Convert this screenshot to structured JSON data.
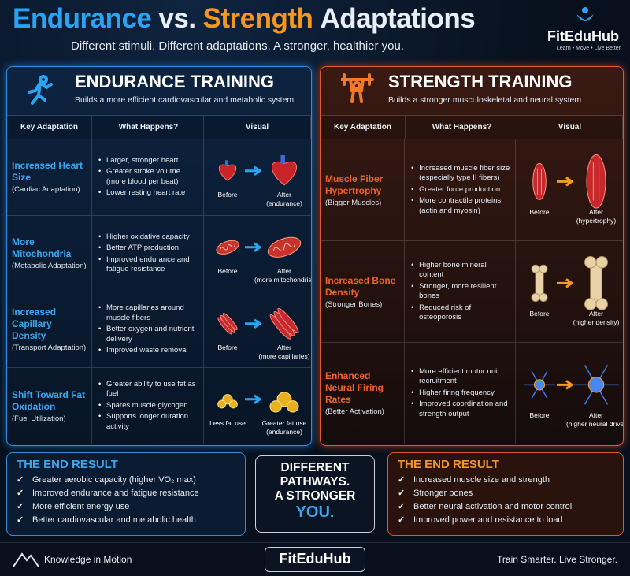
{
  "header": {
    "title": [
      "Endurance",
      "vs.",
      "Strength",
      "Adaptations"
    ],
    "subtitle": "Different stimuli. Different adaptations. A stronger, healthier you.",
    "brand": "FitEduHub",
    "tagline": "Learn • Move • Live Better"
  },
  "panels": [
    {
      "title": "ENDURANCE TRAINING",
      "subtitle": "Builds a more efficient cardiovascular and metabolic system",
      "columns": [
        "Key Adaptation",
        "What Happens?",
        "Visual"
      ],
      "rows": [
        {
          "name": "Increased Heart Size",
          "note": "(Cardiac Adaptation)",
          "points": [
            "Larger, stronger heart",
            "Greater stroke volume (more blood per beat)",
            "Lower resting heart rate"
          ],
          "before": "Before",
          "after": "After",
          "after_note": "(endurance)"
        },
        {
          "name": "More Mitochondria",
          "note": "(Metabolic Adaptation)",
          "points": [
            "Higher oxidative capacity",
            "Better ATP production",
            "Improved endurance and fatigue resistance"
          ],
          "before": "Before",
          "after": "After",
          "after_note": "(more mitochondria)"
        },
        {
          "name": "Increased Capillary Density",
          "note": "(Transport Adaptation)",
          "points": [
            "More capillaries around muscle fibers",
            "Better oxygen and nutrient delivery",
            "Improved waste removal"
          ],
          "before": "Before",
          "after": "After",
          "after_note": "(more capillaries)"
        },
        {
          "name": "Shift Toward Fat Oxidation",
          "note": "(Fuel Utilization)",
          "points": [
            "Greater ability to use fat as fuel",
            "Spares muscle glycogen",
            "Supports longer duration activity"
          ],
          "before": "Less fat use",
          "after": "Greater fat use",
          "after_note": "(endurance)"
        }
      ]
    },
    {
      "title": "STRENGTH TRAINING",
      "subtitle": "Builds a stronger musculoskeletal and neural system",
      "columns": [
        "Key Adaptation",
        "What Happens?",
        "Visual"
      ],
      "rows": [
        {
          "name": "Muscle Fiber Hypertrophy",
          "note": "(Bigger Muscles)",
          "points": [
            "Increased muscle fiber size (especially type II fibers)",
            "Greater force production",
            "More contractile proteins (actin and myosin)"
          ],
          "before": "Before",
          "after": "After",
          "after_note": "(hypertrophy)"
        },
        {
          "name": "Increased Bone Density",
          "note": "(Stronger Bones)",
          "points": [
            "Higher bone mineral content",
            "Stronger, more resilient bones",
            "Reduced risk of osteoporosis"
          ],
          "before": "Before",
          "after": "After",
          "after_note": "(higher density)"
        },
        {
          "name": "Enhanced Neural Firing Rates",
          "note": "(Better Activation)",
          "points": [
            "More efficient motor unit recruitment",
            "Higher firing frequency",
            "Improved coordination and strength output"
          ],
          "before": "Before",
          "after": "After",
          "after_note": "(higher neural drive)"
        }
      ]
    }
  ],
  "results": [
    {
      "title": "THE END RESULT",
      "items": [
        "Greater aerobic capacity (higher VO₂ max)",
        "Improved endurance and fatigue resistance",
        "More efficient energy use",
        "Better cardiovascular and metabolic health"
      ]
    },
    {
      "title": "THE END RESULT",
      "items": [
        "Increased muscle size and strength",
        "Stronger bones",
        "Better neural activation and motor control",
        "Improved power and resistance to load"
      ]
    }
  ],
  "center": {
    "lines": [
      "DIFFERENT",
      "PATHWAYS.",
      "A STRONGER"
    ],
    "highlight": "YOU."
  },
  "footer": {
    "left": "Knowledge in Motion",
    "center": "FitEduHub",
    "right": "Train Smarter. Live Stronger."
  }
}
